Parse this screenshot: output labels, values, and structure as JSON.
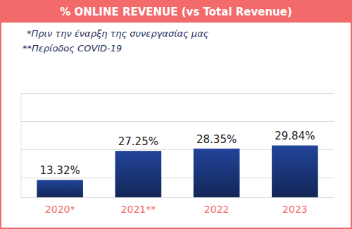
{
  "chart_data": {
    "type": "bar",
    "title": "% ONLINE REVENUE (vs Total Revenue)",
    "annotations": [
      "*Πριν την έναρξη της συνεργασίας μας",
      "**Περίοδος COVID-19"
    ],
    "categories": [
      "2020*",
      "2021**",
      "2022",
      "2023"
    ],
    "values": [
      13.32,
      27.25,
      28.35,
      29.84
    ],
    "value_labels": [
      "13.32%",
      "27.25%",
      "28.35%",
      "29.84%"
    ],
    "data_labels": true,
    "color": "#1f3f8f",
    "ylim": [
      5,
      55
    ],
    "yticks": [
      5,
      14.5,
      28,
      41.5,
      55
    ],
    "grid": true,
    "tick_labels": "x"
  }
}
